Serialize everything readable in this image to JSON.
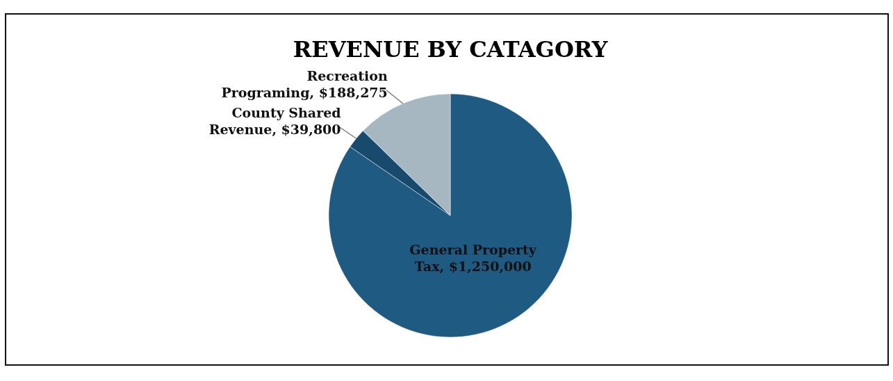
{
  "chart_data": {
    "type": "pie",
    "title": "REVENUE BY CATAGORY",
    "categories": [
      "General Property Tax",
      "County Shared Revenue",
      "Recreation Programing"
    ],
    "values": [
      1250000,
      39800,
      188275
    ],
    "value_labels": [
      "$1,250,000",
      "$39,800",
      "$188,275"
    ],
    "colors": [
      "#1f5a82",
      "#174a6c",
      "#a7b7c2"
    ],
    "legend": false
  }
}
